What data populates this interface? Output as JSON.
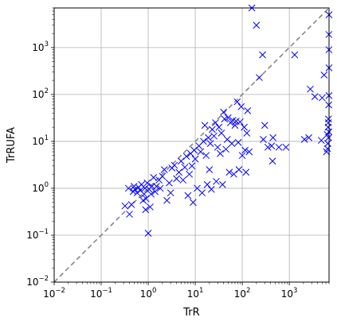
{
  "chart_data": {
    "type": "scatter",
    "xlabel": "TrR",
    "ylabel": "TrRUFA",
    "xscale": "log",
    "yscale": "log",
    "xlim": [
      0.01,
      7000
    ],
    "ylim": [
      0.01,
      7000
    ],
    "grid": true,
    "marker": "x",
    "marker_color": "#0000ff",
    "reference_line": {
      "style": "dashed",
      "color": "#808080",
      "from": [
        0.01,
        0.01
      ],
      "to": [
        7000,
        7000
      ]
    },
    "x_ticks": [
      {
        "value": 0.01,
        "base": "10",
        "exp": "−2"
      },
      {
        "value": 0.1,
        "base": "10",
        "exp": "−1"
      },
      {
        "value": 1,
        "base": "10",
        "exp": "0"
      },
      {
        "value": 10,
        "base": "10",
        "exp": "1"
      },
      {
        "value": 100,
        "base": "10",
        "exp": "2"
      },
      {
        "value": 1000,
        "base": "10",
        "exp": "3"
      }
    ],
    "y_ticks": [
      {
        "value": 0.01,
        "base": "10",
        "exp": "−2"
      },
      {
        "value": 0.1,
        "base": "10",
        "exp": "−1"
      },
      {
        "value": 1,
        "base": "10",
        "exp": "0"
      },
      {
        "value": 10,
        "base": "10",
        "exp": "1"
      },
      {
        "value": 100,
        "base": "10",
        "exp": "2"
      },
      {
        "value": 1000,
        "base": "10",
        "exp": "3"
      }
    ],
    "points": [
      [
        0.32,
        0.42
      ],
      [
        0.38,
        1.0
      ],
      [
        0.4,
        0.28
      ],
      [
        0.44,
        0.45
      ],
      [
        0.48,
        0.85
      ],
      [
        0.5,
        1.1
      ],
      [
        0.52,
        0.95
      ],
      [
        0.58,
        0.8
      ],
      [
        0.62,
        1.05
      ],
      [
        0.68,
        0.9
      ],
      [
        0.72,
        1.2
      ],
      [
        0.78,
        0.55
      ],
      [
        0.82,
        0.75
      ],
      [
        0.85,
        1.0
      ],
      [
        0.88,
        0.35
      ],
      [
        0.9,
        0.6
      ],
      [
        0.95,
        1.3
      ],
      [
        1.0,
        0.11
      ],
      [
        1.05,
        0.95
      ],
      [
        1.1,
        0.4
      ],
      [
        1.15,
        0.75
      ],
      [
        1.2,
        1.1
      ],
      [
        1.3,
        1.7
      ],
      [
        1.4,
        0.85
      ],
      [
        1.5,
        1.1
      ],
      [
        1.7,
        1.5
      ],
      [
        1.8,
        1.0
      ],
      [
        2.0,
        1.8
      ],
      [
        2.2,
        2.5
      ],
      [
        2.5,
        0.55
      ],
      [
        2.8,
        1.3
      ],
      [
        3.0,
        0.8
      ],
      [
        3.2,
        2.7
      ],
      [
        3.6,
        3.1
      ],
      [
        4.0,
        1.6
      ],
      [
        4.5,
        2.2
      ],
      [
        5.0,
        3.8
      ],
      [
        5.5,
        1.5
      ],
      [
        6.0,
        2.8
      ],
      [
        6.5,
        4.8
      ],
      [
        7.0,
        0.7
      ],
      [
        7.5,
        2.0
      ],
      [
        8.0,
        5.5
      ],
      [
        8.5,
        3.0
      ],
      [
        9.0,
        0.5
      ],
      [
        9.5,
        6.5
      ],
      [
        10.0,
        4.2
      ],
      [
        11.0,
        1.0
      ],
      [
        12.0,
        8.0
      ],
      [
        13.0,
        6.0
      ],
      [
        14.0,
        0.8
      ],
      [
        15.0,
        10.0
      ],
      [
        16.0,
        22.0
      ],
      [
        17.0,
        5.0
      ],
      [
        18.0,
        1.2
      ],
      [
        19.0,
        12.0
      ],
      [
        20.0,
        2.5
      ],
      [
        21.0,
        9.0
      ],
      [
        22.0,
        0.95
      ],
      [
        23.0,
        18.0
      ],
      [
        25.0,
        13.0
      ],
      [
        27.0,
        25.0
      ],
      [
        28.0,
        1.4
      ],
      [
        30.0,
        7.5
      ],
      [
        32.0,
        20.0
      ],
      [
        34.0,
        5.5
      ],
      [
        36.0,
        15.0
      ],
      [
        38.0,
        1.2
      ],
      [
        40.0,
        42.0
      ],
      [
        42.0,
        30.0
      ],
      [
        45.0,
        6.8
      ],
      [
        48.0,
        11.0
      ],
      [
        50.0,
        32.0
      ],
      [
        53.0,
        2.2
      ],
      [
        56.0,
        25.0
      ],
      [
        60.0,
        9.0
      ],
      [
        63.0,
        28.0
      ],
      [
        66.0,
        2.0
      ],
      [
        70.0,
        22.0
      ],
      [
        74.0,
        27.0
      ],
      [
        78.0,
        70.0
      ],
      [
        82.0,
        9.5
      ],
      [
        85.0,
        2.5
      ],
      [
        90.0,
        26.0
      ],
      [
        95.0,
        55.0
      ],
      [
        100.0,
        5.0
      ],
      [
        110.0,
        20.0
      ],
      [
        115.0,
        6.5
      ],
      [
        120.0,
        2.2
      ],
      [
        125.0,
        15.0
      ],
      [
        130.0,
        45.0
      ],
      [
        140.0,
        6.0
      ],
      [
        160.0,
        7000.0
      ],
      [
        200.0,
        3000.0
      ],
      [
        230.0,
        230.0
      ],
      [
        270.0,
        700.0
      ],
      [
        280.0,
        11.0
      ],
      [
        300.0,
        22.0
      ],
      [
        350.0,
        7.5
      ],
      [
        420.0,
        8.0
      ],
      [
        440.0,
        3.8
      ],
      [
        450.0,
        12.0
      ],
      [
        600.0,
        7.5
      ],
      [
        850.0,
        7.5
      ],
      [
        1300.0,
        700.0
      ],
      [
        2100.0,
        11.0
      ],
      [
        2600.0,
        12.0
      ],
      [
        2800.0,
        130.0
      ],
      [
        3500.0,
        90.0
      ],
      [
        4800.0,
        10.5
      ],
      [
        5000.0,
        85.0
      ],
      [
        5500.0,
        260.0
      ],
      [
        6200.0,
        6.0
      ],
      [
        6400.0,
        14.0
      ],
      [
        6500.0,
        7.0
      ],
      [
        6600.0,
        9.0
      ],
      [
        6700.0,
        20.0
      ],
      [
        6800.0,
        30.0
      ],
      [
        6900.0,
        60.0
      ],
      [
        6950.0,
        1900.0
      ],
      [
        6980.0,
        900.0
      ],
      [
        6990.0,
        370.0
      ],
      [
        7000.0,
        5000.0
      ],
      [
        6850.0,
        12.0
      ],
      [
        6750.0,
        25.0
      ],
      [
        6950.0,
        16.0
      ],
      [
        6980.0,
        95.0
      ]
    ]
  }
}
